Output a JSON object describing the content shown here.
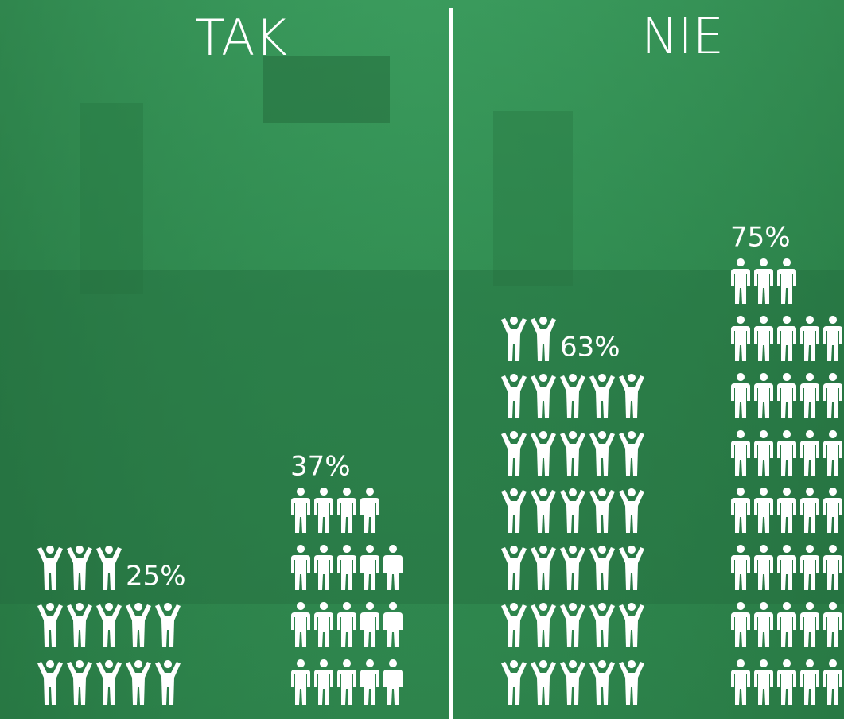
{
  "chart_data": [
    {
      "type": "pictogram",
      "title": "TAK",
      "values": [
        25,
        37
      ],
      "value_labels": [
        "25%",
        "37%"
      ],
      "color": "#ffffff"
    },
    {
      "type": "pictogram",
      "title": "NIE",
      "values": [
        63,
        75
      ],
      "value_labels": [
        "63%",
        "75%"
      ],
      "color": "#ffffff"
    }
  ]
}
